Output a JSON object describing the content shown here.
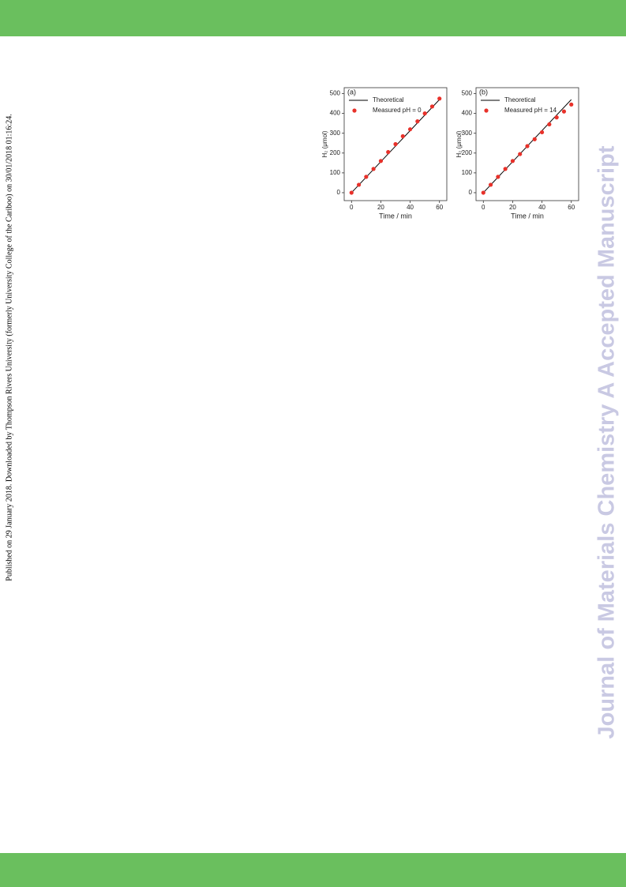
{
  "sidebar": "Published on 29 January 2018. Downloaded by Thompson Rivers University (formerly University College of the Cariboo) on 30/01/2018 01:16:24.",
  "watermark": "Journal of Materials Chemistry A Accepted Manuscript",
  "chart_data": [
    {
      "type": "line",
      "panel_label": "(a)",
      "x_label": "Time / min",
      "y_label": "H₂ (μmol)",
      "xlim": [
        -5,
        65
      ],
      "xticks": [
        0,
        20,
        40,
        60
      ],
      "ylim": [
        -40,
        530
      ],
      "yticks": [
        0,
        100,
        200,
        300,
        400,
        500
      ],
      "series": [
        {
          "name": "Theoretical",
          "color": "#000000",
          "mode": "line",
          "x": [
            0,
            60
          ],
          "values": [
            0,
            470
          ]
        },
        {
          "name": "Measured pH = 0",
          "color": "#e8312a",
          "mode": "marker",
          "x": [
            0,
            5,
            10,
            15,
            20,
            25,
            30,
            35,
            40,
            45,
            50,
            55,
            60
          ],
          "values": [
            0,
            40,
            80,
            120,
            160,
            205,
            245,
            285,
            320,
            360,
            400,
            435,
            475
          ]
        }
      ]
    },
    {
      "type": "line",
      "panel_label": "(b)",
      "x_label": "Time / min",
      "y_label": "H₂ (μmol)",
      "xlim": [
        -5,
        65
      ],
      "xticks": [
        0,
        20,
        40,
        60
      ],
      "ylim": [
        -40,
        530
      ],
      "yticks": [
        0,
        100,
        200,
        300,
        400,
        500
      ],
      "series": [
        {
          "name": "Theoretical",
          "color": "#000000",
          "mode": "line",
          "x": [
            0,
            60
          ],
          "values": [
            0,
            470
          ]
        },
        {
          "name": "Measured pH = 14",
          "color": "#e8312a",
          "mode": "marker",
          "x": [
            0,
            5,
            10,
            15,
            20,
            25,
            30,
            35,
            40,
            45,
            50,
            55,
            60
          ],
          "values": [
            0,
            40,
            80,
            120,
            160,
            195,
            235,
            270,
            305,
            345,
            380,
            410,
            445
          ]
        }
      ]
    }
  ]
}
